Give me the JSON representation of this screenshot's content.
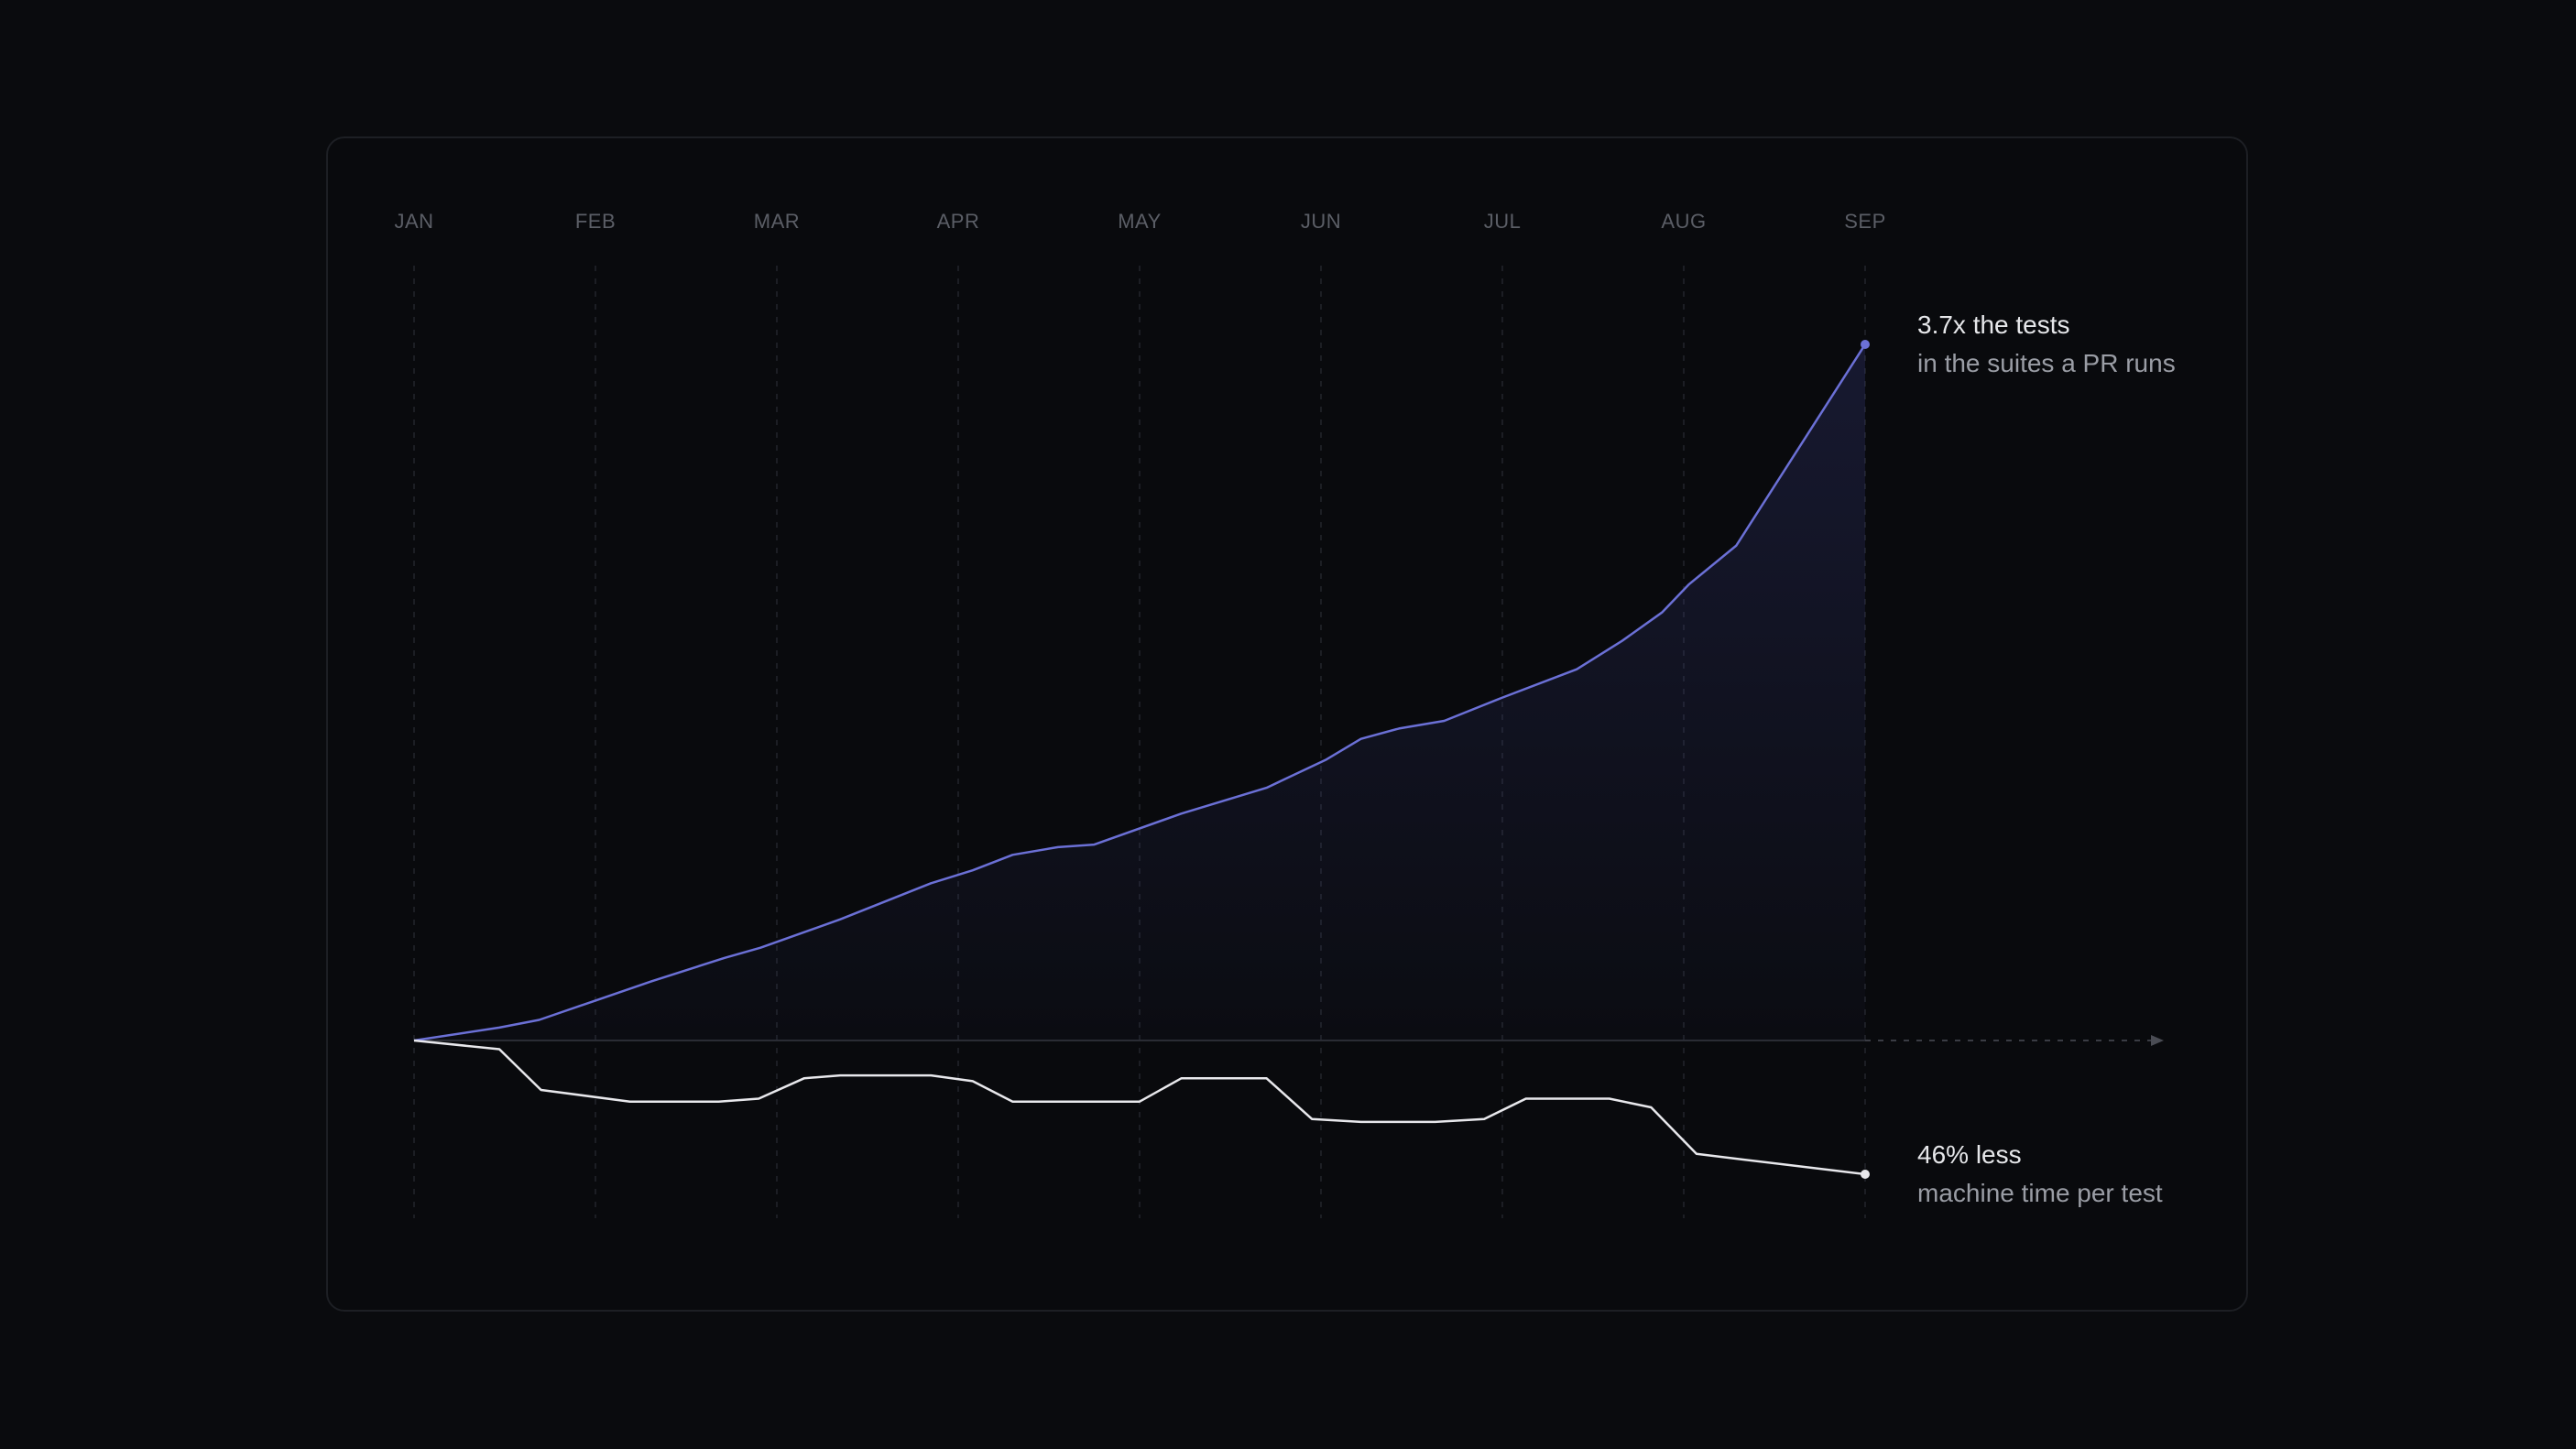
{
  "chart_data": {
    "type": "line",
    "x_axis": {
      "tick_labels": [
        "JAN",
        "FEB",
        "MAR",
        "APR",
        "MAY",
        "JUN",
        "JUL",
        "AUG",
        "SEP"
      ],
      "range": [
        0,
        8
      ]
    },
    "grid": "vertical dashed lines at each month",
    "annotations": [
      {
        "series": "tests",
        "headline": "3.7x the tests",
        "subline": "in the suites a PR runs"
      },
      {
        "series": "time",
        "headline": "46% less",
        "subline": "machine time per test"
      }
    ],
    "series": [
      {
        "key": "tests",
        "color": "#6b70d6",
        "fill": "area gradient",
        "ylim": [
          1.0,
          3.7
        ],
        "points": [
          [
            0,
            1.0
          ],
          [
            0.47,
            1.05
          ],
          [
            0.69,
            1.08
          ],
          [
            0.98,
            1.15
          ],
          [
            1.31,
            1.23
          ],
          [
            1.71,
            1.32
          ],
          [
            1.91,
            1.36
          ],
          [
            2.35,
            1.47
          ],
          [
            2.85,
            1.61
          ],
          [
            3.08,
            1.66
          ],
          [
            3.3,
            1.72
          ],
          [
            3.55,
            1.75
          ],
          [
            3.75,
            1.76
          ],
          [
            4.23,
            1.88
          ],
          [
            4.7,
            1.98
          ],
          [
            5.03,
            2.09
          ],
          [
            5.22,
            2.17
          ],
          [
            5.43,
            2.21
          ],
          [
            5.68,
            2.24
          ],
          [
            6.0,
            2.33
          ],
          [
            6.41,
            2.44
          ],
          [
            6.66,
            2.55
          ],
          [
            6.88,
            2.66
          ],
          [
            7.03,
            2.77
          ],
          [
            7.29,
            2.92
          ],
          [
            8.0,
            3.7
          ]
        ]
      },
      {
        "key": "time",
        "color": "#e8e8ec",
        "ylim": [
          0.54,
          1.0
        ],
        "points": [
          [
            0,
            1.0
          ],
          [
            0.47,
            0.97
          ],
          [
            0.7,
            0.83
          ],
          [
            1.19,
            0.79
          ],
          [
            1.68,
            0.79
          ],
          [
            1.9,
            0.8
          ],
          [
            2.15,
            0.87
          ],
          [
            2.35,
            0.88
          ],
          [
            2.85,
            0.88
          ],
          [
            3.08,
            0.86
          ],
          [
            3.3,
            0.79
          ],
          [
            4.0,
            0.79
          ],
          [
            4.23,
            0.87
          ],
          [
            4.7,
            0.87
          ],
          [
            4.95,
            0.73
          ],
          [
            5.22,
            0.72
          ],
          [
            5.63,
            0.72
          ],
          [
            5.9,
            0.73
          ],
          [
            6.13,
            0.8
          ],
          [
            6.59,
            0.8
          ],
          [
            6.82,
            0.77
          ],
          [
            7.07,
            0.61
          ],
          [
            8.0,
            0.54
          ]
        ]
      }
    ]
  }
}
